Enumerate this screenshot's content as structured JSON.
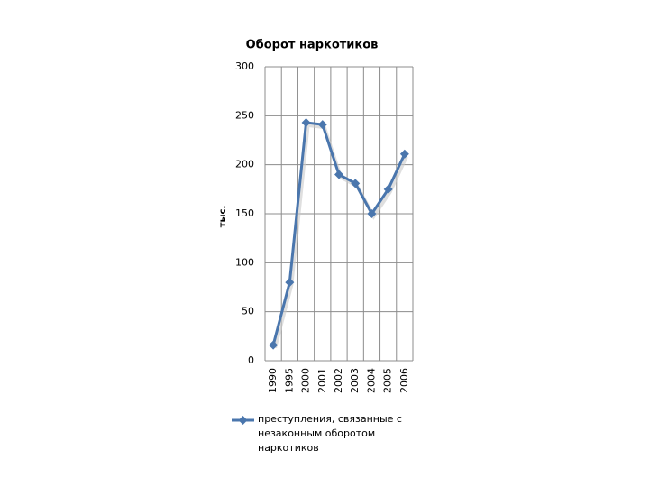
{
  "chart_data": {
    "type": "line",
    "title": "Оборот наркотиков",
    "y_label": "тыс.",
    "categories": [
      "1990",
      "1995",
      "2000",
      "2001",
      "2002",
      "2003",
      "2004",
      "2005",
      "2006"
    ],
    "series": [
      {
        "name": "преступления, связанные с незаконным оборотом наркотиков",
        "color": "#4a76ad",
        "values": [
          16,
          80,
          243,
          241,
          190,
          181,
          150,
          175,
          211
        ]
      }
    ],
    "ylim": [
      0,
      300
    ],
    "yticks": [
      0,
      50,
      100,
      150,
      200,
      250,
      300
    ],
    "grid": true,
    "legend": "bottom"
  }
}
